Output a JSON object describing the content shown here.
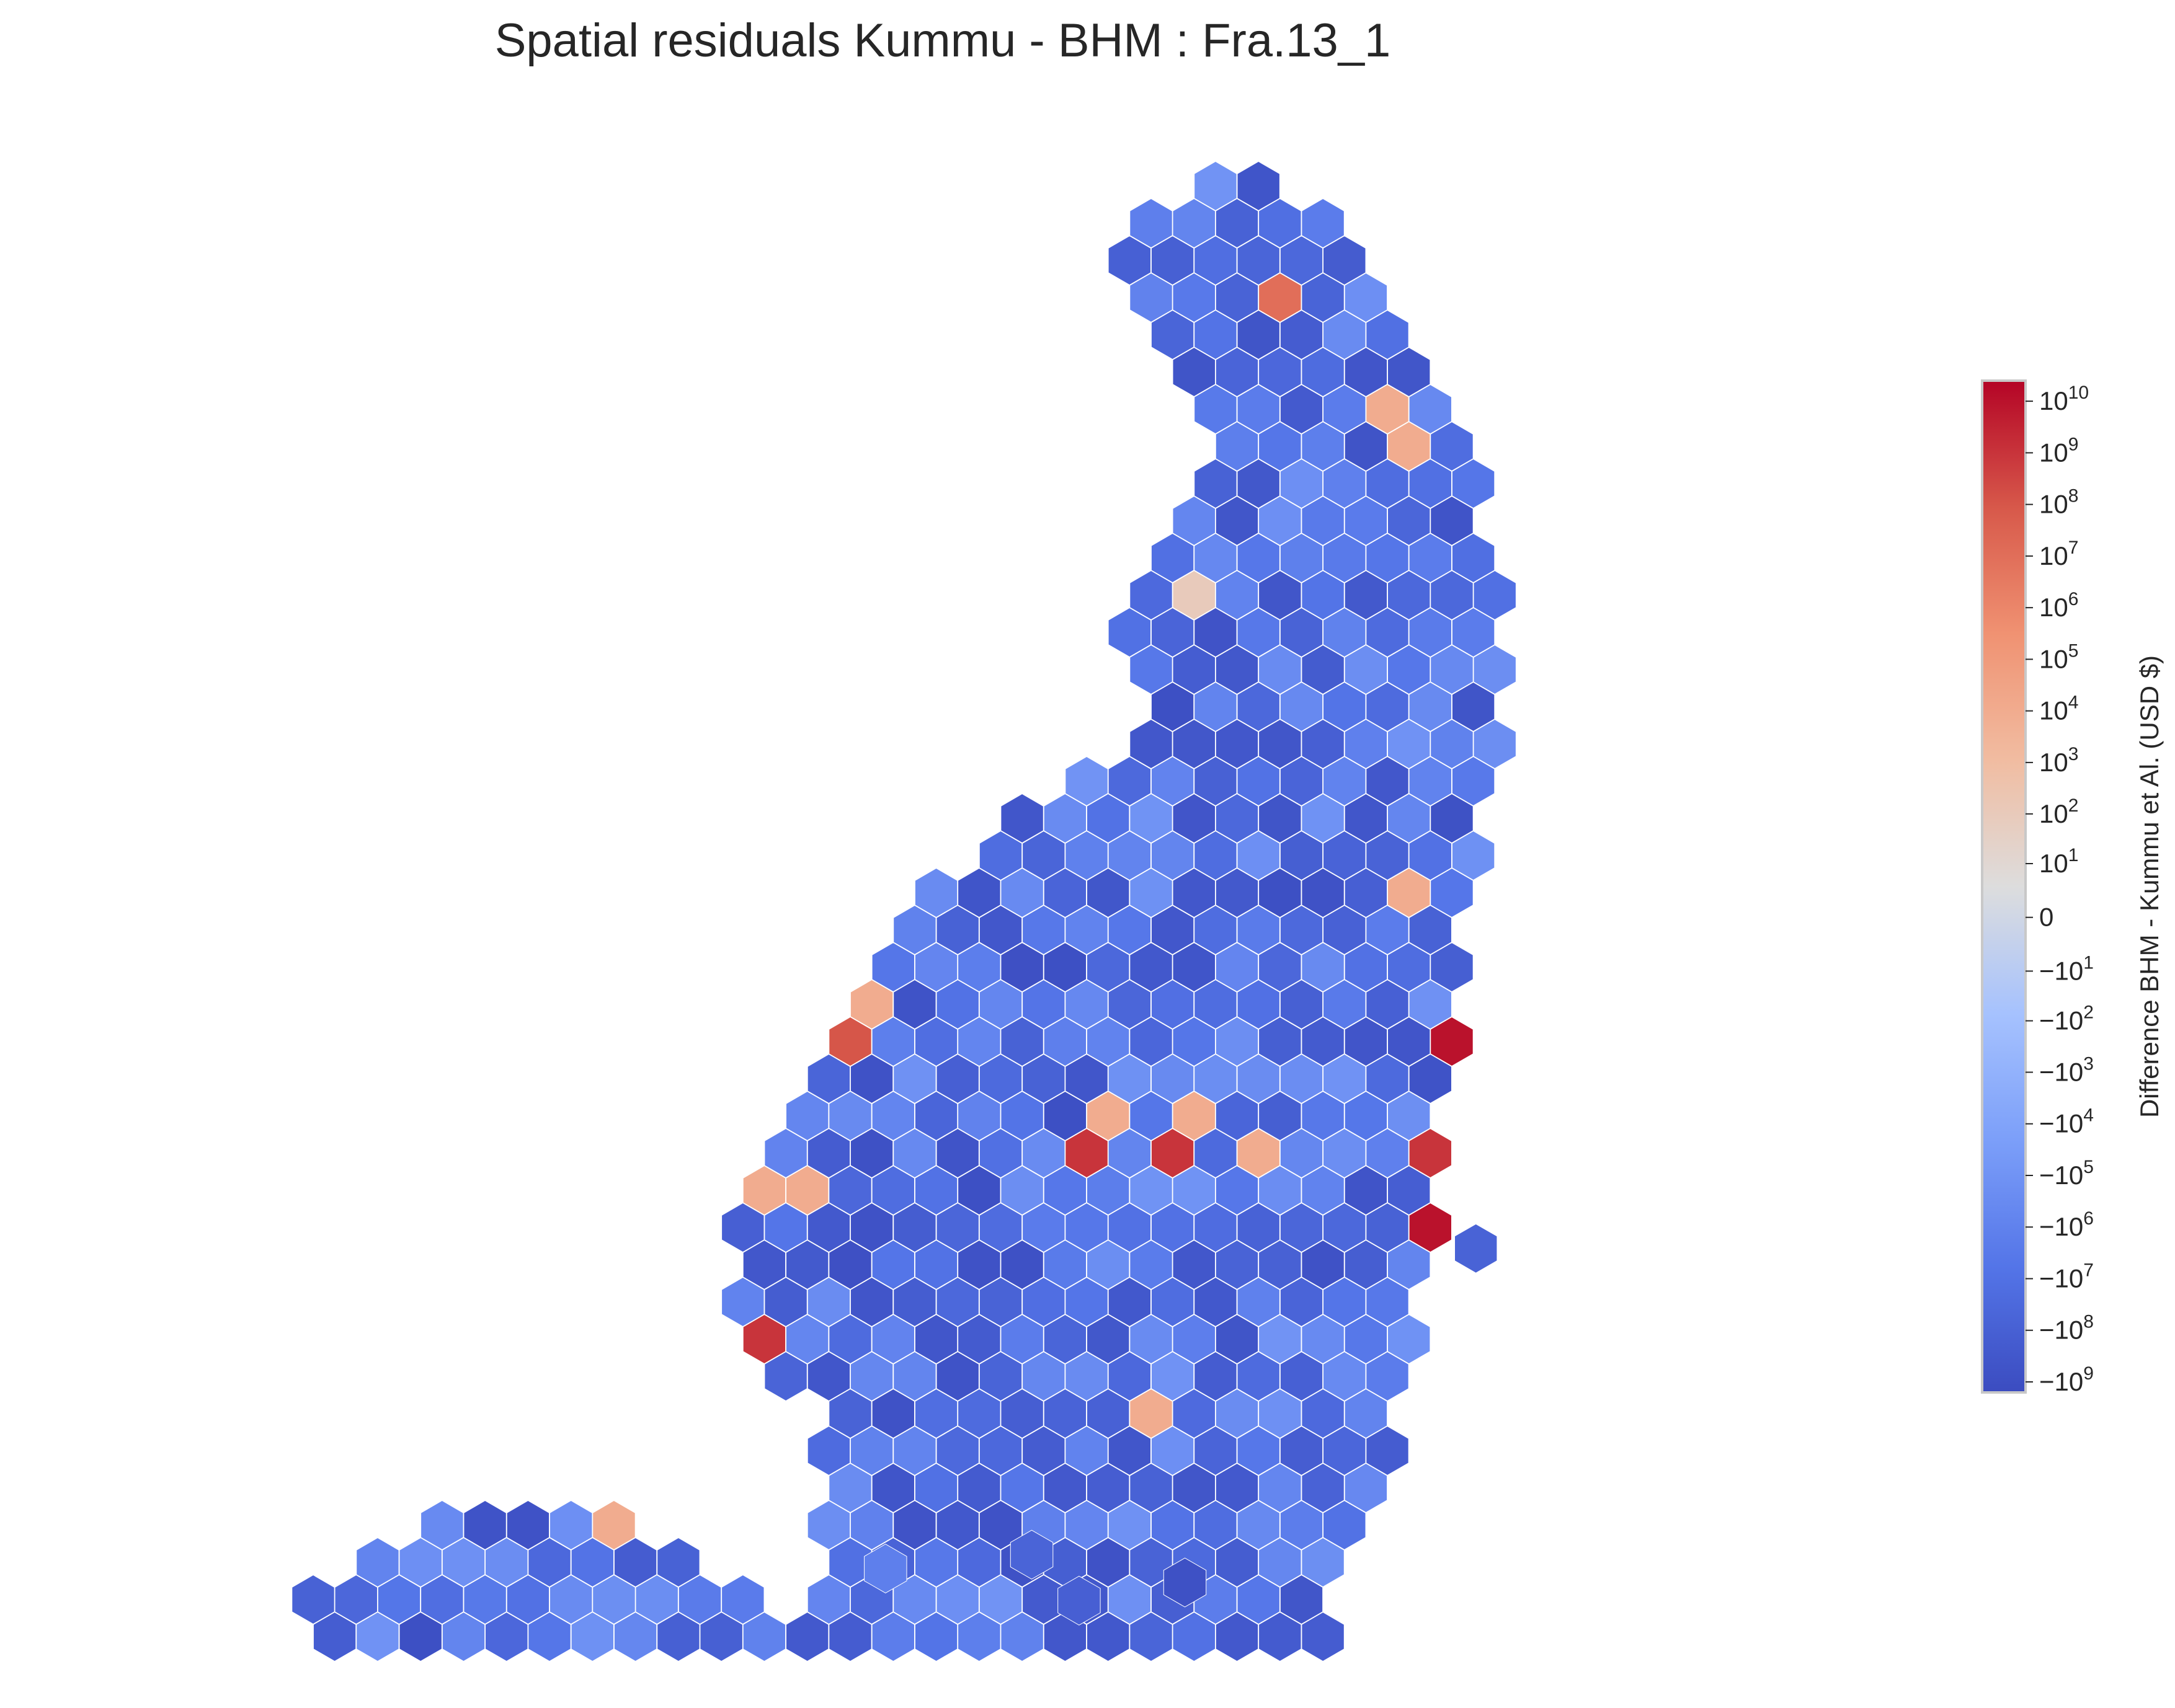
{
  "chart_data": {
    "type": "heatmap",
    "subtype": "hexbin-map",
    "title": "Spatial residuals Kummu - BHM : Fra.13_1",
    "colormap": "coolwarm",
    "scale": "symlog",
    "colorbar": {
      "label": "Difference BHM - Kummu et Al. (USD $)",
      "ticks": [
        {
          "label": "10",
          "exp": "10",
          "value": 10000000000.0
        },
        {
          "label": "10",
          "exp": "9",
          "value": 1000000000.0
        },
        {
          "label": "10",
          "exp": "8",
          "value": 100000000.0
        },
        {
          "label": "10",
          "exp": "7",
          "value": 10000000.0
        },
        {
          "label": "10",
          "exp": "6",
          "value": 1000000.0
        },
        {
          "label": "10",
          "exp": "5",
          "value": 100000.0
        },
        {
          "label": "10",
          "exp": "4",
          "value": 10000.0
        },
        {
          "label": "10",
          "exp": "3",
          "value": 1000.0
        },
        {
          "label": "10",
          "exp": "2",
          "value": 100.0
        },
        {
          "label": "10",
          "exp": "1",
          "value": 10.0
        },
        {
          "label": "0",
          "exp": "",
          "value": 0
        },
        {
          "label": "−10",
          "exp": "1",
          "value": -10.0
        },
        {
          "label": "−10",
          "exp": "2",
          "value": -100.0
        },
        {
          "label": "−10",
          "exp": "3",
          "value": -1000.0
        },
        {
          "label": "−10",
          "exp": "4",
          "value": -10000.0
        },
        {
          "label": "−10",
          "exp": "5",
          "value": -100000.0
        },
        {
          "label": "−10",
          "exp": "6",
          "value": -1000000.0
        },
        {
          "label": "−10",
          "exp": "7",
          "value": -10000000.0
        },
        {
          "label": "−10",
          "exp": "8",
          "value": -100000000.0
        },
        {
          "label": "−10",
          "exp": "9",
          "value": -1000000000.0
        }
      ]
    },
    "background_value_range": [
      -1000000000.0,
      -100000.0
    ],
    "positive_hotspots": [
      {
        "approx_value": 10000000.0
      },
      {
        "approx_value": 10000.0
      },
      {
        "approx_value": 10000.0
      },
      {
        "approx_value": 100.0
      },
      {
        "approx_value": 10000.0
      },
      {
        "approx_value": 10000.0
      },
      {
        "approx_value": 10000.0
      },
      {
        "approx_value": 100000000.0
      },
      {
        "approx_value": 10000.0
      },
      {
        "approx_value": 10000.0
      },
      {
        "approx_value": 10000.0
      },
      {
        "approx_value": 10000.0
      },
      {
        "approx_value": 10000.0
      },
      {
        "approx_value": 1000000000.0
      },
      {
        "approx_value": 10000.0
      },
      {
        "approx_value": 10000.0
      },
      {
        "approx_value": 1000000000.0
      },
      {
        "approx_value": 1000000000.0
      },
      {
        "approx_value": 10000000000.0
      },
      {
        "approx_value": 10000000000.0
      },
      {
        "approx_value": 1000000000.0
      },
      {
        "approx_value": 10000.0
      },
      {
        "approx_value": 10000.0
      }
    ]
  }
}
